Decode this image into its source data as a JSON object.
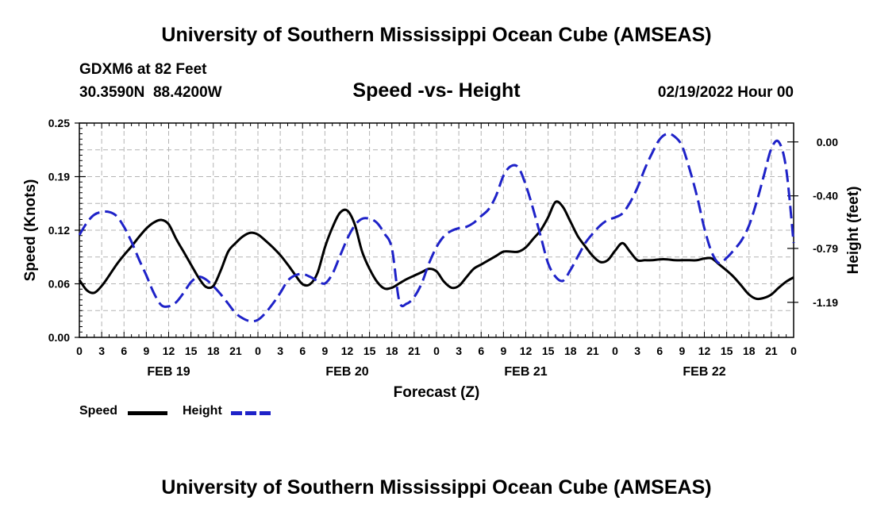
{
  "page": {
    "title": "University of Southern Mississippi Ocean Cube (AMSEAS)",
    "footer_title": "University of Southern Mississippi Ocean Cube (AMSEAS)",
    "station": "GDXM6 at 82 Feet",
    "coords": "30.3590N  88.4200W",
    "chart_subtitle": "Speed -vs- Height",
    "datetime": "02/19/2022 Hour 00"
  },
  "legend": {
    "speed_label": "Speed",
    "height_label": "Height"
  },
  "colors": {
    "speed": "#000000",
    "height": "#1e22c8",
    "grid": "#b4b4b4"
  },
  "chart_data": {
    "type": "line",
    "title": "Speed -vs- Height",
    "xlabel": "Forecast (Z)",
    "ylabel": "Speed (Knots)",
    "y2label": "Height (feet)",
    "x_range_hours": [
      0,
      96
    ],
    "ylim": [
      0,
      0.25
    ],
    "y2lim": [
      -1.45,
      0.14
    ],
    "y_ticks": [
      "0.00",
      "0.06",
      "0.12",
      "0.19",
      "0.25"
    ],
    "y_tick_values": [
      0,
      0.0625,
      0.125,
      0.1875,
      0.25
    ],
    "y2_ticks": [
      "0.00",
      "-0.40",
      "-0.79",
      "-1.19"
    ],
    "y2_tick_values": [
      0,
      -0.4,
      -0.79,
      -1.19
    ],
    "x_ticks": [
      "0",
      "3",
      "6",
      "9",
      "12",
      "15",
      "18",
      "21",
      "0",
      "3",
      "6",
      "9",
      "12",
      "15",
      "18",
      "21",
      "0",
      "3",
      "6",
      "9",
      "12",
      "15",
      "18",
      "21",
      "0",
      "3",
      "6",
      "9",
      "12",
      "15",
      "18",
      "21",
      "0"
    ],
    "x_tick_values": [
      0,
      3,
      6,
      9,
      12,
      15,
      18,
      21,
      24,
      27,
      30,
      33,
      36,
      39,
      42,
      45,
      48,
      51,
      54,
      57,
      60,
      63,
      66,
      69,
      72,
      75,
      78,
      81,
      84,
      87,
      90,
      93,
      96
    ],
    "day_labels": [
      {
        "label": "FEB 19",
        "hour": 12
      },
      {
        "label": "FEB 20",
        "hour": 36
      },
      {
        "label": "FEB 21",
        "hour": 60
      },
      {
        "label": "FEB 22",
        "hour": 84
      }
    ],
    "series": [
      {
        "name": "Speed",
        "axis": "left",
        "style": "solid",
        "x": [
          0,
          1,
          2,
          3,
          4,
          5,
          6,
          7,
          8,
          9,
          10,
          11,
          12,
          13,
          14,
          15,
          16,
          17,
          18,
          19,
          20,
          21,
          22,
          23,
          24,
          25,
          26,
          27,
          28,
          29,
          30,
          31,
          32,
          33,
          34,
          35,
          36,
          37,
          38,
          39,
          40,
          41,
          42,
          43,
          44,
          45,
          46,
          47,
          48,
          49,
          50,
          51,
          52,
          53,
          54,
          55,
          56,
          57,
          58,
          59,
          60,
          61,
          62,
          63,
          64,
          65,
          66,
          67,
          68,
          69,
          70,
          71,
          72,
          73,
          74,
          75,
          76,
          77,
          78,
          79,
          80,
          81,
          82,
          83,
          84,
          85,
          86,
          87,
          88,
          89,
          90,
          91,
          92,
          93,
          94,
          95,
          96
        ],
        "values": [
          0.067,
          0.055,
          0.052,
          0.06,
          0.072,
          0.085,
          0.096,
          0.106,
          0.117,
          0.127,
          0.134,
          0.137,
          0.132,
          0.115,
          0.1,
          0.085,
          0.07,
          0.059,
          0.06,
          0.078,
          0.1,
          0.11,
          0.118,
          0.122,
          0.12,
          0.113,
          0.105,
          0.096,
          0.085,
          0.073,
          0.062,
          0.062,
          0.075,
          0.105,
          0.128,
          0.145,
          0.148,
          0.132,
          0.1,
          0.08,
          0.065,
          0.057,
          0.058,
          0.063,
          0.068,
          0.072,
          0.076,
          0.08,
          0.077,
          0.065,
          0.058,
          0.06,
          0.07,
          0.08,
          0.085,
          0.09,
          0.095,
          0.1,
          0.1,
          0.1,
          0.105,
          0.115,
          0.125,
          0.14,
          0.158,
          0.152,
          0.135,
          0.118,
          0.106,
          0.095,
          0.088,
          0.09,
          0.101,
          0.11,
          0.1,
          0.09,
          0.09,
          0.09,
          0.091,
          0.091,
          0.09,
          0.09,
          0.09,
          0.09,
          0.092,
          0.092,
          0.085,
          0.078,
          0.07,
          0.06,
          0.05,
          0.045,
          0.046,
          0.05,
          0.058,
          0.065,
          0.07
        ]
      },
      {
        "name": "Height",
        "axis": "right",
        "style": "dashed",
        "x": [
          0,
          1,
          2,
          3,
          4,
          5,
          6,
          7,
          8,
          9,
          10,
          11,
          12,
          13,
          14,
          15,
          16,
          17,
          18,
          19,
          20,
          21,
          22,
          23,
          24,
          25,
          26,
          27,
          28,
          29,
          30,
          31,
          32,
          33,
          34,
          35,
          36,
          37,
          38,
          39,
          40,
          41,
          42,
          43,
          44,
          45,
          46,
          47,
          48,
          49,
          50,
          51,
          52,
          53,
          54,
          55,
          56,
          57,
          58,
          59,
          60,
          61,
          62,
          63,
          64,
          65,
          66,
          67,
          68,
          69,
          70,
          71,
          72,
          73,
          74,
          75,
          76,
          77,
          78,
          79,
          80,
          81,
          82,
          83,
          84,
          85,
          86,
          87,
          88,
          89,
          90,
          91,
          92,
          93,
          94,
          95,
          96
        ],
        "values": [
          -0.69,
          -0.6,
          -0.54,
          -0.52,
          -0.52,
          -0.55,
          -0.63,
          -0.74,
          -0.87,
          -0.99,
          -1.12,
          -1.21,
          -1.22,
          -1.19,
          -1.12,
          -1.04,
          -1.0,
          -1.02,
          -1.07,
          -1.13,
          -1.2,
          -1.27,
          -1.31,
          -1.33,
          -1.32,
          -1.27,
          -1.2,
          -1.12,
          -1.03,
          -0.99,
          -0.98,
          -1.0,
          -1.03,
          -1.05,
          -0.98,
          -0.85,
          -0.72,
          -0.62,
          -0.57,
          -0.57,
          -0.6,
          -0.68,
          -0.79,
          -1.18,
          -1.2,
          -1.15,
          -1.05,
          -0.9,
          -0.78,
          -0.7,
          -0.66,
          -0.64,
          -0.63,
          -0.6,
          -0.55,
          -0.5,
          -0.4,
          -0.25,
          -0.18,
          -0.19,
          -0.32,
          -0.5,
          -0.7,
          -0.9,
          -1.0,
          -1.03,
          -0.95,
          -0.85,
          -0.75,
          -0.68,
          -0.62,
          -0.58,
          -0.56,
          -0.53,
          -0.45,
          -0.34,
          -0.2,
          -0.08,
          0.02,
          0.06,
          0.04,
          -0.03,
          -0.2,
          -0.4,
          -0.64,
          -0.82,
          -0.9,
          -0.86,
          -0.8,
          -0.73,
          -0.62,
          -0.45,
          -0.25,
          -0.05,
          0.0,
          -0.2,
          -0.75
        ]
      }
    ]
  }
}
